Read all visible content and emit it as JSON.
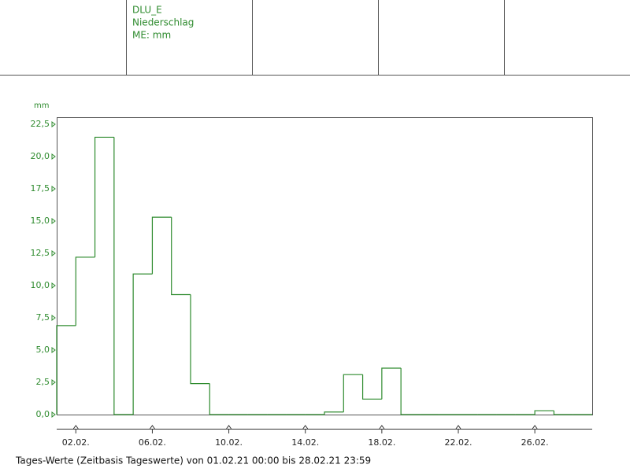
{
  "header": {
    "lines": [
      "DLU_E",
      "Niederschlag",
      "ME: mm"
    ]
  },
  "chart_data": {
    "type": "histogram",
    "y_unit": "mm",
    "color": "#2e8b2e",
    "bins": [
      0,
      1,
      2,
      3,
      4,
      5,
      6,
      7,
      8,
      9,
      10,
      11,
      12,
      13,
      14,
      15,
      16,
      17,
      18,
      19,
      20,
      21,
      22,
      23,
      24,
      25,
      26,
      27,
      28
    ],
    "values": [
      6.9,
      12.2,
      21.5,
      0,
      10.9,
      15.3,
      9.3,
      2.4,
      0,
      0,
      0,
      0,
      0,
      0,
      0.2,
      3.1,
      1.2,
      3.6,
      0,
      0,
      0,
      0,
      0,
      0,
      0,
      0.3,
      0,
      0
    ],
    "xlim": [
      0,
      28
    ],
    "ylim": [
      0,
      23.05
    ],
    "xticks": [
      {
        "value": 1,
        "label": "02.02."
      },
      {
        "value": 5,
        "label": "06.02."
      },
      {
        "value": 9,
        "label": "10.02."
      },
      {
        "value": 13,
        "label": "14.02."
      },
      {
        "value": 17,
        "label": "18.02."
      },
      {
        "value": 21,
        "label": "22.02."
      },
      {
        "value": 25,
        "label": "26.02."
      }
    ],
    "yticks": [
      {
        "value": 0,
        "label": "0,0"
      },
      {
        "value": 2.5,
        "label": "2,5"
      },
      {
        "value": 5,
        "label": "5,0"
      },
      {
        "value": 7.5,
        "label": "7,5"
      },
      {
        "value": 10,
        "label": "10,0"
      },
      {
        "value": 12.5,
        "label": "12,5"
      },
      {
        "value": 15,
        "label": "15,0"
      },
      {
        "value": 17.5,
        "label": "17,5"
      },
      {
        "value": 20,
        "label": "20,0"
      },
      {
        "value": 22.5,
        "label": "22,5"
      }
    ]
  },
  "footer": "Tages-Werte (Zeitbasis Tageswerte) von 01.02.21 00:00 bis 28.02.21 23:59"
}
